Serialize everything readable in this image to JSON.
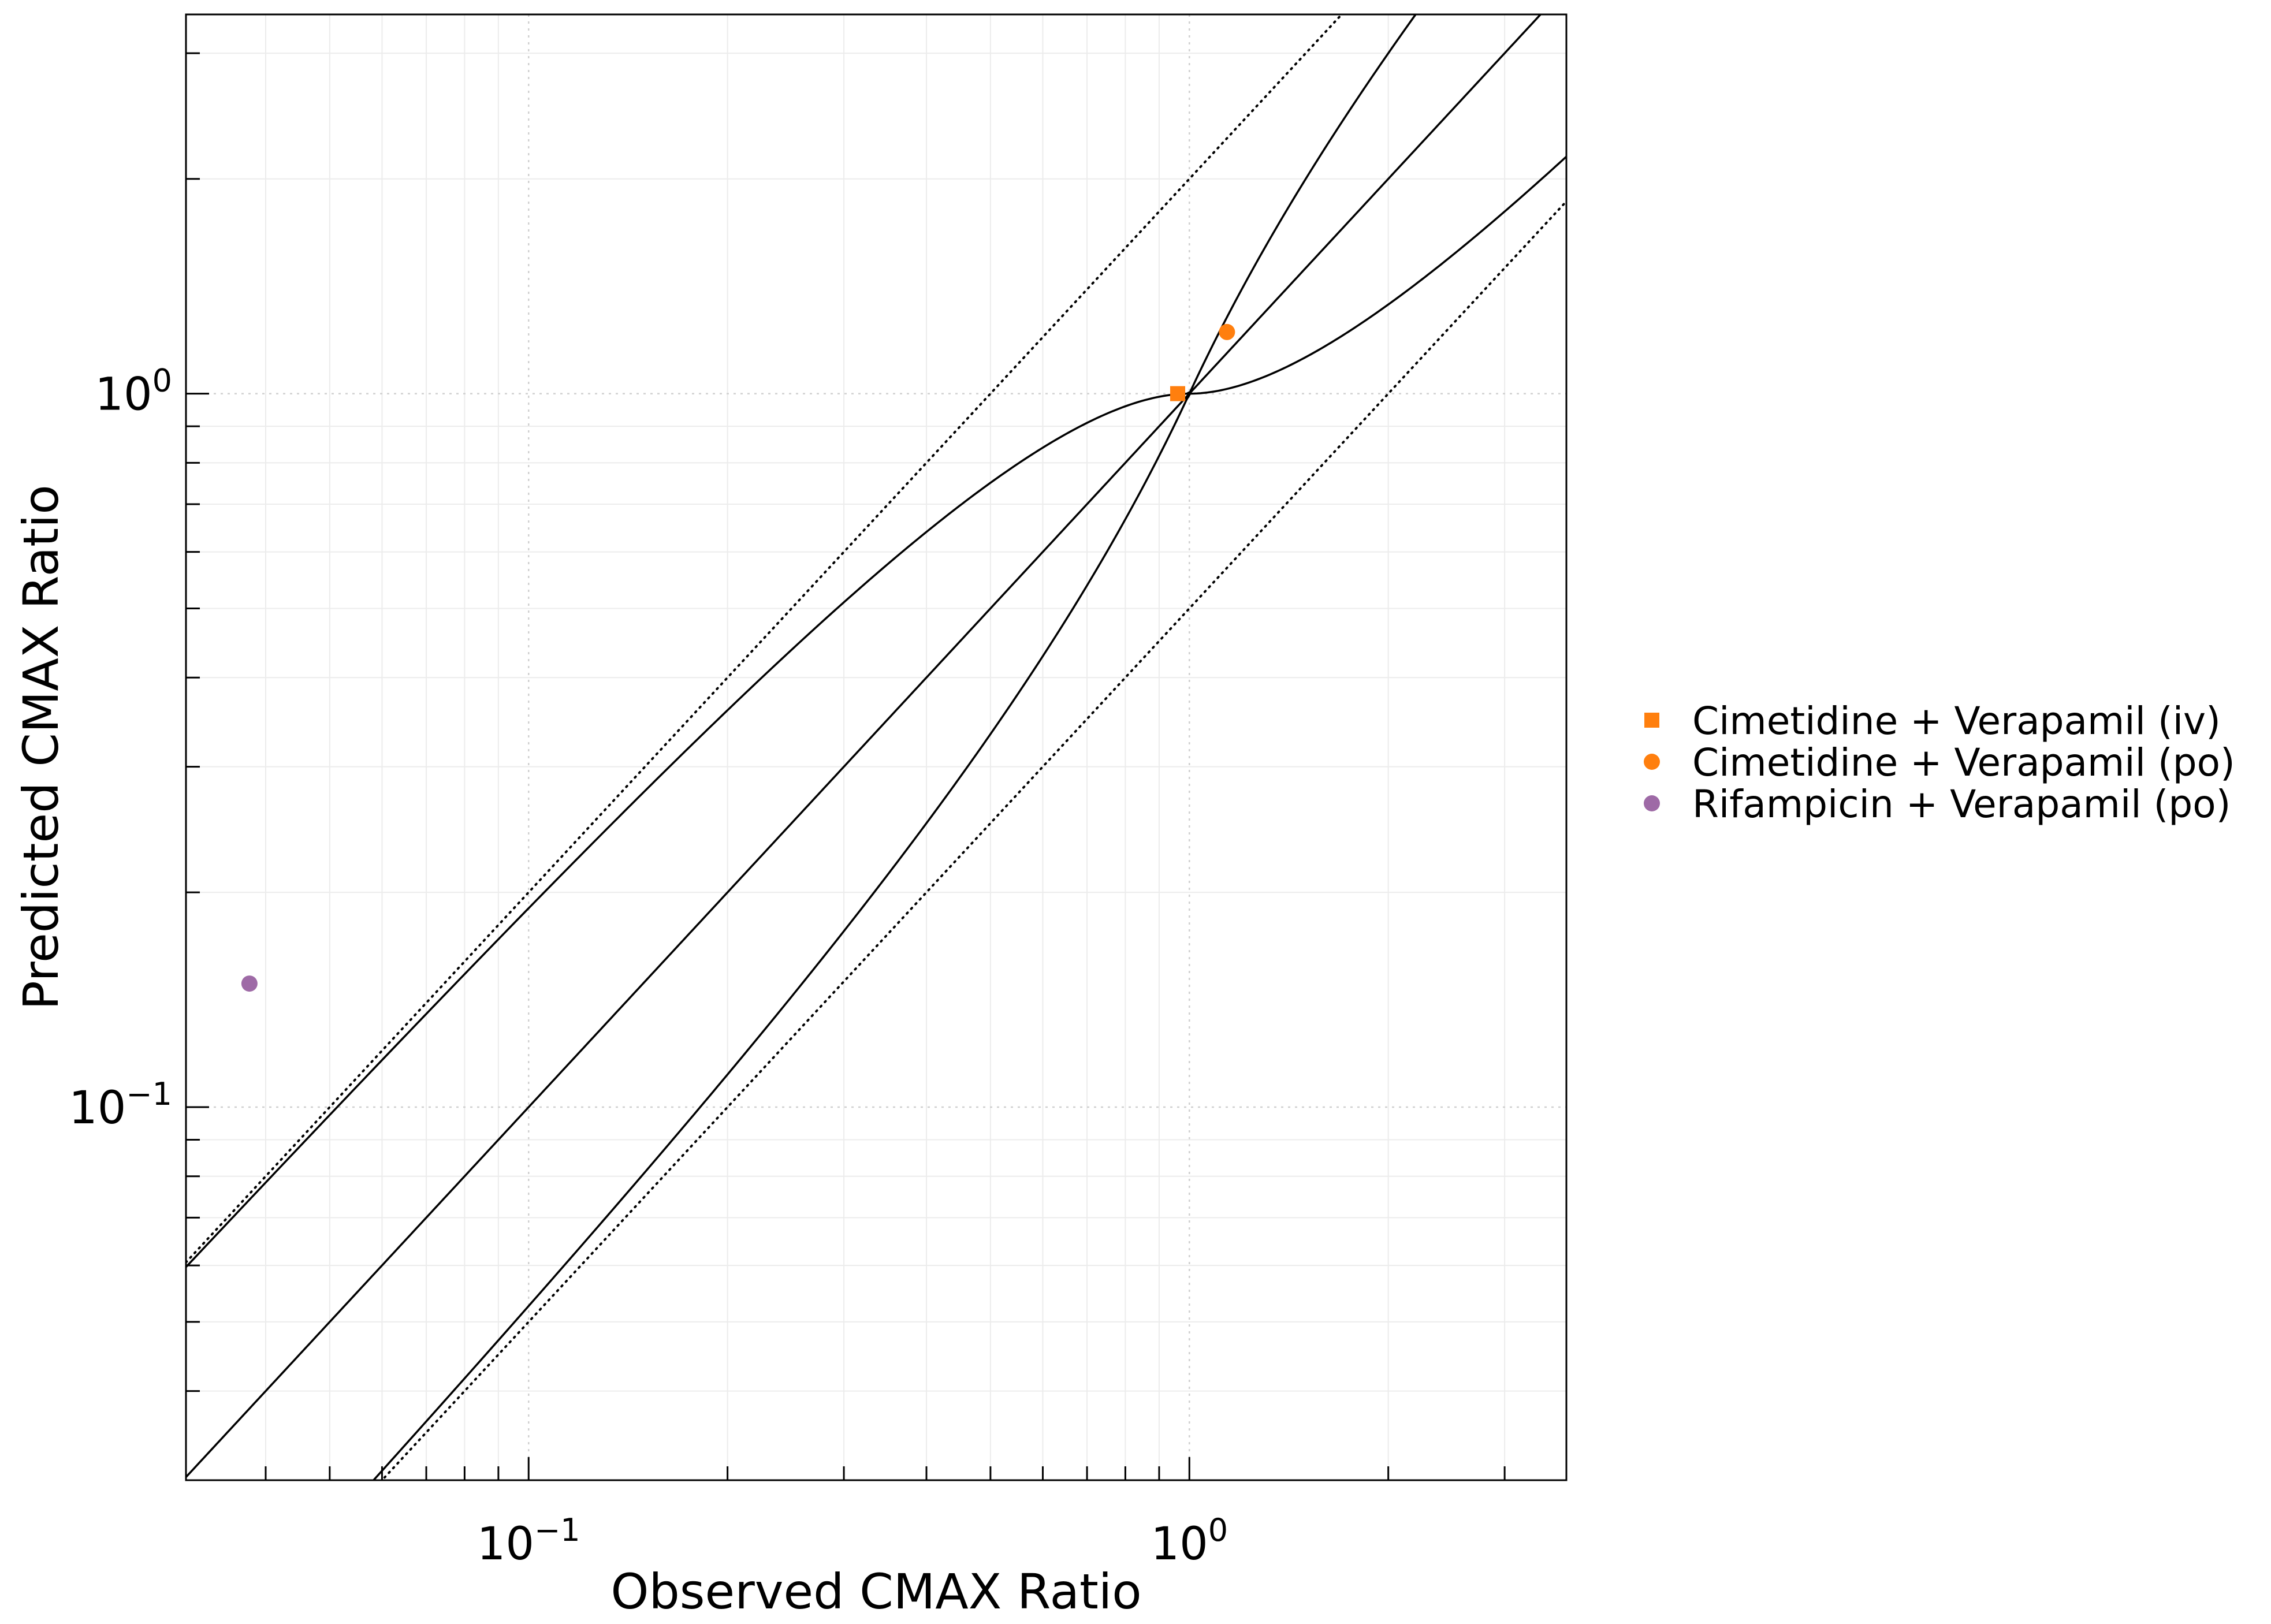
{
  "chart_data": {
    "type": "scatter",
    "xscale": "log",
    "yscale": "log",
    "xlabel": "Observed CMAX Ratio",
    "ylabel": "Predicted CMAX Ratio",
    "xlim": [
      0.0303,
      3.72
    ],
    "ylim": [
      0.03,
      3.4
    ],
    "x_ticks": [
      {
        "value": 0.1,
        "base": "10",
        "exp": "−1"
      },
      {
        "value": 1.0,
        "base": "10",
        "exp": "0"
      }
    ],
    "y_ticks": [
      {
        "value": 0.1,
        "base": "10",
        "exp": "−1"
      },
      {
        "value": 1.0,
        "base": "10",
        "exp": "0"
      }
    ],
    "reference_lines": [
      {
        "name": "line-of-identity",
        "kind": "identity",
        "style": "solid"
      },
      {
        "name": "guest-limit-upper",
        "kind": "guest-upper",
        "style": "solid"
      },
      {
        "name": "guest-limit-lower",
        "kind": "guest-lower",
        "style": "solid"
      },
      {
        "name": "twofold-upper",
        "kind": "factor",
        "factor": 2,
        "style": "dotted"
      },
      {
        "name": "twofold-lower",
        "kind": "factor",
        "factor": 0.5,
        "style": "dotted"
      }
    ],
    "series": [
      {
        "name": "Cimetidine + Verapamil (iv)",
        "marker": "square",
        "color": "#ff7f0e",
        "points": [
          {
            "x": 0.96,
            "y": 1.0
          }
        ]
      },
      {
        "name": "Cimetidine + Verapamil (po)",
        "marker": "circle",
        "color": "#ff7f0e",
        "points": [
          {
            "x": 1.14,
            "y": 1.22
          }
        ]
      },
      {
        "name": "Rifampicin + Verapamil (po)",
        "marker": "circle",
        "color": "#9e6aa6",
        "points": [
          {
            "x": 0.0378,
            "y": 0.149
          }
        ]
      }
    ],
    "legend": {
      "position": "right"
    },
    "grid": true
  }
}
